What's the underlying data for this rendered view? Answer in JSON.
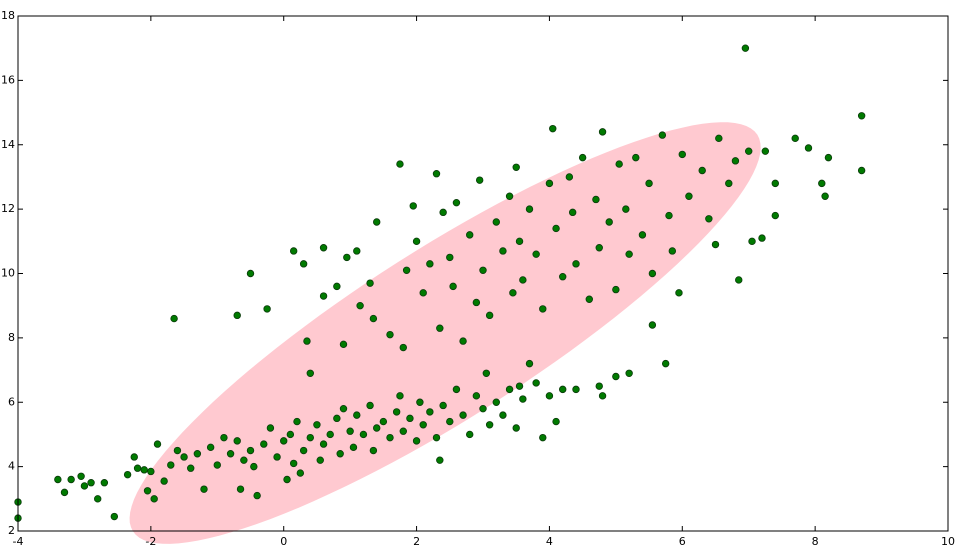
{
  "chart_data": {
    "type": "scatter",
    "color": "#007a00",
    "ellipse": {
      "center": [
        2.43,
        8.15
      ],
      "axis1": [
        4.7,
        6.16
      ],
      "axis2": [
        0.69,
        -2.23
      ],
      "color": "#ffc9d0"
    },
    "x": [
      -4,
      -4,
      -3.4,
      -3.3,
      -3.2,
      -3.05,
      -3.0,
      -2.9,
      -2.8,
      -2.7,
      -2.55,
      -2.35,
      -2.25,
      -2.2,
      -2.1,
      -2.05,
      -2.0,
      -1.95,
      -1.9,
      -1.8,
      -1.7,
      -1.6,
      -1.5,
      -1.4,
      -1.3,
      -1.2,
      -1.1,
      -1.0,
      -0.9,
      -0.8,
      -0.7,
      -0.65,
      -0.6,
      -0.5,
      -0.45,
      -0.4,
      -0.3,
      -0.2,
      -0.1,
      0,
      0.05,
      0.1,
      0.15,
      0.2,
      0.25,
      0.3,
      0.4,
      0.5,
      0.55,
      0.6,
      0.7,
      0.8,
      0.85,
      0.9,
      1.0,
      1.05,
      1.1,
      1.2,
      1.3,
      1.35,
      1.4,
      1.5,
      1.6,
      1.7,
      1.75,
      1.8,
      1.9,
      2.0,
      2.05,
      2.1,
      2.2,
      2.3,
      2.35,
      2.4,
      2.5,
      2.6,
      2.7,
      2.8,
      2.9,
      3.0,
      3.05,
      3.1,
      3.2,
      3.3,
      3.4,
      3.5,
      3.55,
      3.6,
      3.7,
      3.8,
      3.9,
      4.0,
      4.1,
      4.2,
      4.4,
      4.75,
      4.8,
      5.0,
      5.2,
      5.55,
      5.75,
      -1.65,
      -0.7,
      -0.5,
      -0.25,
      0.15,
      0.3,
      0.35,
      0.4,
      0.6,
      0.6,
      0.8,
      0.9,
      0.95,
      1.1,
      1.15,
      1.3,
      1.4,
      1.35,
      1.6,
      1.75,
      1.8,
      1.85,
      1.95,
      2.0,
      2.1,
      2.2,
      2.3,
      2.35,
      2.4,
      2.5,
      2.55,
      2.6,
      2.7,
      2.8,
      2.9,
      2.95,
      3.0,
      3.1,
      3.2,
      3.3,
      3.4,
      3.45,
      3.5,
      3.55,
      3.6,
      3.7,
      3.8,
      3.9,
      4.0,
      4.05,
      4.1,
      4.2,
      4.3,
      4.35,
      4.4,
      4.5,
      4.6,
      4.7,
      4.75,
      4.8,
      4.9,
      5.0,
      5.05,
      5.15,
      5.2,
      5.3,
      5.4,
      5.5,
      5.55,
      5.7,
      5.8,
      5.85,
      5.95,
      6.0,
      6.1,
      6.3,
      6.4,
      6.5,
      6.55,
      6.7,
      6.8,
      6.85,
      6.95,
      7.0,
      7.05,
      7.2,
      7.25,
      7.4,
      7.4,
      7.7,
      7.9,
      8.1,
      8.15,
      8.2,
      8.7,
      8.7
    ],
    "y": [
      2.9,
      2.4,
      3.6,
      3.2,
      3.6,
      3.7,
      3.4,
      3.5,
      3.0,
      3.5,
      2.45,
      3.75,
      4.3,
      3.95,
      3.9,
      3.25,
      3.85,
      3.0,
      4.7,
      3.55,
      4.05,
      4.5,
      4.3,
      3.95,
      4.4,
      3.3,
      4.6,
      4.05,
      4.9,
      4.4,
      4.8,
      3.3,
      4.2,
      4.5,
      4.0,
      3.1,
      4.7,
      5.2,
      4.3,
      4.8,
      3.6,
      5.0,
      4.1,
      5.4,
      3.8,
      4.5,
      4.9,
      5.3,
      4.2,
      4.7,
      5.0,
      5.5,
      4.4,
      5.8,
      5.1,
      4.6,
      5.6,
      5.0,
      5.9,
      4.5,
      5.2,
      5.4,
      4.9,
      5.7,
      6.2,
      5.1,
      5.5,
      4.8,
      6.0,
      5.3,
      5.7,
      4.9,
      4.2,
      5.9,
      5.4,
      6.4,
      5.6,
      5.0,
      6.2,
      5.8,
      6.9,
      5.3,
      6.0,
      5.6,
      6.4,
      5.2,
      6.5,
      6.1,
      7.2,
      6.6,
      4.9,
      6.2,
      5.4,
      6.4,
      6.4,
      6.5,
      6.2,
      6.8,
      6.9,
      8.4,
      7.2,
      8.6,
      8.7,
      10.0,
      8.9,
      10.7,
      10.3,
      7.9,
      6.9,
      10.8,
      9.3,
      9.6,
      7.8,
      10.5,
      10.7,
      9.0,
      9.7,
      11.6,
      8.6,
      8.1,
      13.4,
      7.7,
      10.1,
      12.1,
      11.0,
      9.4,
      10.3,
      13.1,
      8.3,
      11.9,
      10.5,
      9.6,
      12.2,
      7.9,
      11.2,
      9.1,
      12.9,
      10.1,
      8.7,
      11.6,
      10.7,
      12.4,
      9.4,
      13.3,
      11.0,
      9.8,
      12.0,
      10.6,
      8.9,
      12.8,
      14.5,
      11.4,
      9.9,
      13.0,
      11.9,
      10.3,
      13.6,
      9.2,
      12.3,
      10.8,
      14.4,
      11.6,
      9.5,
      13.4,
      12.0,
      10.6,
      13.6,
      11.2,
      12.8,
      10.0,
      14.3,
      11.8,
      10.7,
      9.4,
      13.7,
      12.4,
      13.2,
      11.7,
      10.9,
      14.2,
      12.8,
      13.5,
      9.8,
      17.0,
      13.8,
      11.0,
      11.1,
      13.8,
      11.8,
      12.8,
      14.2,
      13.9,
      12.8,
      12.4,
      13.6,
      14.9,
      13.2
    ],
    "xlim": [
      -4,
      10
    ],
    "ylim": [
      2,
      18
    ],
    "xticks": [
      -4,
      -2,
      0,
      2,
      4,
      6,
      8,
      10
    ],
    "yticks": [
      2,
      4,
      6,
      8,
      10,
      12,
      14,
      16,
      18
    ]
  }
}
